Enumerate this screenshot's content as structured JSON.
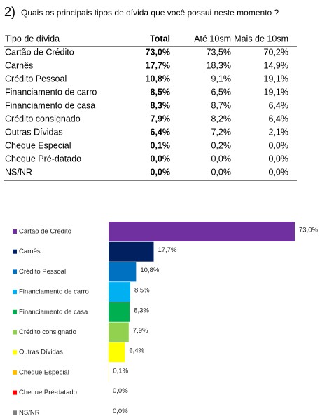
{
  "title_number": "2)",
  "title": "Quais os principais tipos de dívida que você possui neste momento ?",
  "table": {
    "header": [
      "Tipo de dívida",
      "Total",
      "Até 10sm",
      "Mais de 10sm"
    ],
    "rows": [
      [
        "Cartão de Crédito",
        "73,0%",
        "73,5%",
        "70,2%"
      ],
      [
        "Carnês",
        "17,7%",
        "18,3%",
        "14,9%"
      ],
      [
        "Crédito Pessoal",
        "10,8%",
        "9,1%",
        "19,1%"
      ],
      [
        "Financiamento de carro",
        "8,5%",
        "6,5%",
        "19,1%"
      ],
      [
        "Financiamento de casa",
        "8,3%",
        "8,7%",
        "6,4%"
      ],
      [
        "Crédito consignado",
        "7,9%",
        "8,2%",
        "6,4%"
      ],
      [
        "Outras Dívidas",
        "6,4%",
        "7,2%",
        "2,1%"
      ],
      [
        "Cheque Especial",
        "0,1%",
        "0,2%",
        "0,0%"
      ],
      [
        "Cheque Pré-datado",
        "0,0%",
        "0,0%",
        "0,0%"
      ],
      [
        "NS/NR",
        "0,0%",
        "0,0%",
        "0,0%"
      ]
    ]
  },
  "chart_data": {
    "type": "bar",
    "orientation": "horizontal",
    "categories": [
      "Cartão de Crédito",
      "Carnês",
      "Crédito Pessoal",
      "Financiamento de carro",
      "Financiamento de casa",
      "Crédito consignado",
      "Outras Dívidas",
      "Cheque Especial",
      "Cheque Pré-datado",
      "NS/NR"
    ],
    "values": [
      73.0,
      17.7,
      10.8,
      8.5,
      8.3,
      7.9,
      6.4,
      0.1,
      0.0,
      0.0
    ],
    "value_labels": [
      "73,0%",
      "17,7%",
      "10,8%",
      "8,5%",
      "8,3%",
      "7,9%",
      "6,4%",
      "0,1%",
      "0,0%",
      "0,0%"
    ],
    "colors": [
      "#7030a0",
      "#002060",
      "#0070c0",
      "#00b0f0",
      "#00b050",
      "#92d050",
      "#ffff00",
      "#ffc000",
      "#ff0000",
      "#7f7f7f"
    ]
  }
}
